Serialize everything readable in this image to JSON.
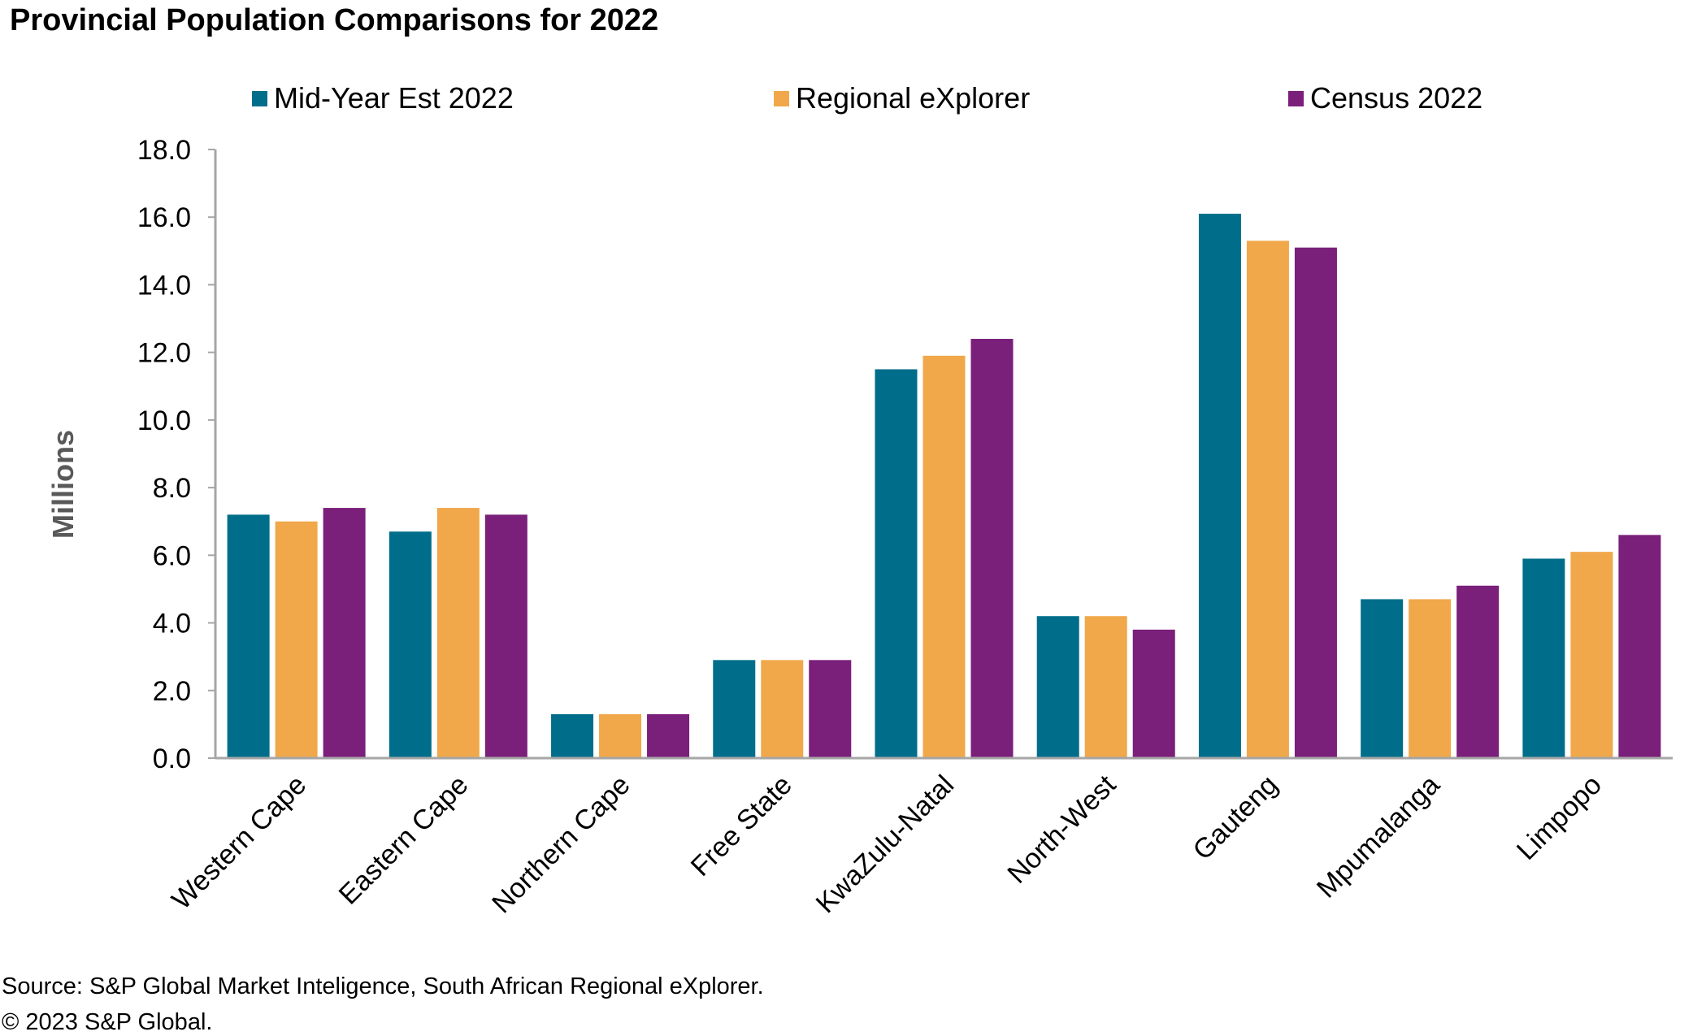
{
  "title": "Provincial Population Comparisons for 2022",
  "source": "Source: S&P Global Market Inteligence, South African Regional eXplorer.",
  "copyright": "© 2023 S&P Global.",
  "chart_data": {
    "type": "bar",
    "title": "Provincial Population Comparisons for 2022",
    "xlabel": "",
    "ylabel": "Millions",
    "ylim": [
      0,
      18
    ],
    "yticks": [
      "0.0",
      "2.0",
      "4.0",
      "6.0",
      "8.0",
      "10.0",
      "12.0",
      "14.0",
      "16.0",
      "18.0"
    ],
    "grid": false,
    "legend_position": "top",
    "categories": [
      "Western Cape",
      "Eastern Cape",
      "Northern Cape",
      "Free State",
      "KwaZulu-Natal",
      "North-West",
      "Gauteng",
      "Mpumalanga",
      "Limpopo"
    ],
    "series": [
      {
        "name": "Mid-Year Est 2022",
        "color": "#006E8A",
        "values": [
          7.2,
          6.7,
          1.3,
          2.9,
          11.5,
          4.2,
          16.1,
          4.7,
          5.9
        ]
      },
      {
        "name": "Regional eXplorer",
        "color": "#F0A84B",
        "values": [
          7.0,
          7.4,
          1.3,
          2.9,
          11.9,
          4.2,
          15.3,
          4.7,
          6.1
        ]
      },
      {
        "name": "Census 2022",
        "color": "#7A1F7A",
        "values": [
          7.4,
          7.2,
          1.3,
          2.9,
          12.4,
          3.8,
          15.1,
          5.1,
          6.6
        ]
      }
    ]
  }
}
